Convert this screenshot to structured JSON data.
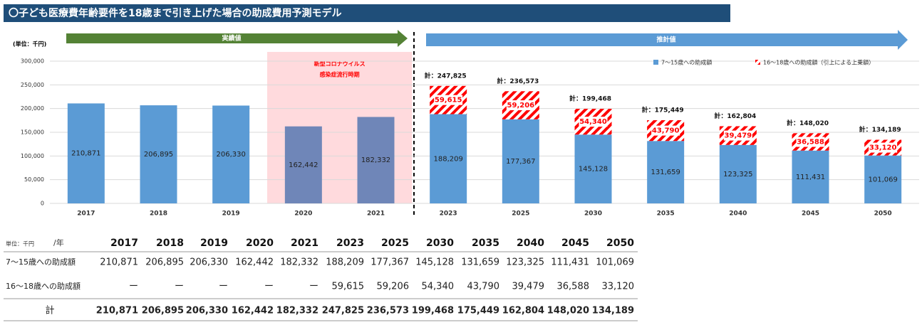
{
  "chart_data": {
    "type": "stacked_bar",
    "title": "〇子ども医療費年齢要件を18歳まで引き上げた場合の助成費用予測モデル",
    "unit_label": "(単位：千円)",
    "actual_label": "実績値",
    "forecast_label": "推計値",
    "categories": [
      "2017",
      "2018",
      "2019",
      "2020",
      "2021",
      "2023",
      "2025",
      "2030",
      "2035",
      "2040",
      "2045",
      "2050"
    ],
    "series": [
      {
        "name": "7〜15歳への助成額",
        "color": "#5b9bd5",
        "values": [
          210871,
          206895,
          206330,
          162442,
          182332,
          188209,
          177367,
          145128,
          131659,
          123325,
          111431,
          101069
        ],
        "value_labels": [
          "210,871",
          "206,895",
          "206,330",
          "162,442",
          "182,332",
          "188,209",
          "177,367",
          "145,128",
          "131,659",
          "123,325",
          "111,431",
          "101,069"
        ]
      },
      {
        "name": "16〜18歳への助成額（引上による上乗額）",
        "color": "#ff0000",
        "values": [
          null,
          null,
          null,
          null,
          null,
          59615,
          59206,
          54340,
          43790,
          39479,
          36588,
          33120
        ],
        "value_labels": [
          null,
          null,
          null,
          null,
          null,
          "59,615",
          "59,206",
          "54,340",
          "43,790",
          "39,479",
          "36,588",
          "33,120"
        ]
      }
    ],
    "totals": [
      null,
      null,
      null,
      null,
      null,
      247825,
      236573,
      199468,
      175449,
      162804,
      148020,
      134189
    ],
    "total_labels": [
      null,
      null,
      null,
      null,
      null,
      "計：247,825",
      "計：236,573",
      "計：199,468",
      "計：175,449",
      "計：162,804",
      "計：148,020",
      "計：134,189"
    ],
    "ylim": [
      0,
      300000
    ],
    "yticks": [
      {
        "value": 0,
        "label": "0"
      },
      {
        "value": 50000,
        "label": "50,000"
      },
      {
        "value": 100000,
        "label": "100,000"
      },
      {
        "value": 150000,
        "label": "150,000"
      },
      {
        "value": 200000,
        "label": "200,000"
      },
      {
        "value": 250000,
        "label": "250,000"
      },
      {
        "value": 300000,
        "label": "300,000"
      }
    ],
    "grid": true,
    "shade": {
      "categories": [
        "2020",
        "2021"
      ],
      "color": "#ffdadd",
      "bar_color": "#6f86b8",
      "text": [
        "新型コロナウイルス",
        "感染症流行時期"
      ]
    }
  },
  "table": {
    "unit": "単位：千円",
    "header_suffix": "/年",
    "columns": [
      "2017",
      "2018",
      "2019",
      "2020",
      "2021",
      "2023",
      "2025",
      "2030",
      "2035",
      "2040",
      "2045",
      "2050"
    ],
    "rows": [
      {
        "label": "7〜15歳への助成額",
        "cells": [
          "210,871",
          "206,895",
          "206,330",
          "162,442",
          "182,332",
          "188,209",
          "177,367",
          "145,128",
          "131,659",
          "123,325",
          "111,431",
          "101,069"
        ]
      },
      {
        "label": "16〜18歳への助成額",
        "cells": [
          "ー",
          "ー",
          "ー",
          "ー",
          "ー",
          "59,615",
          "59,206",
          "54,340",
          "43,790",
          "39,479",
          "36,588",
          "33,120"
        ]
      },
      {
        "label": "計",
        "cells": [
          "210,871",
          "206,895",
          "206,330",
          "162,442",
          "182,332",
          "247,825",
          "236,573",
          "199,468",
          "175,449",
          "162,804",
          "148,020",
          "134,189"
        ]
      }
    ]
  }
}
